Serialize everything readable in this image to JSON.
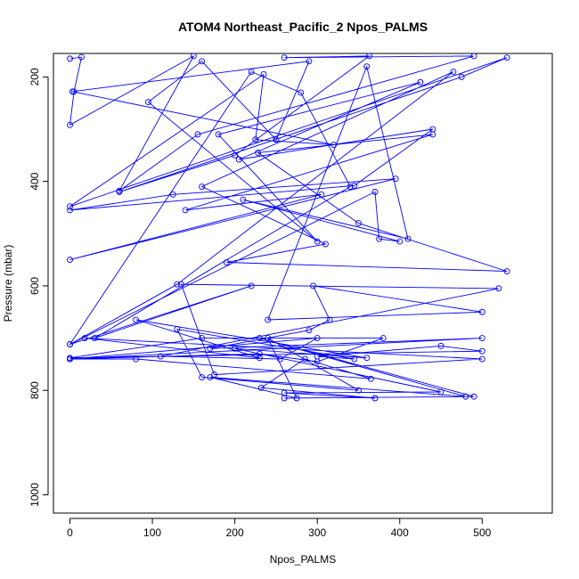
{
  "chart_data": {
    "type": "line",
    "title": "ATOM4 Northeast_Pacific_2 Npos_PALMS",
    "xlabel": "Npos_PALMS",
    "ylabel": "Pressure (mbar)",
    "xlim": [
      -20,
      585
    ],
    "ylim": [
      1035,
      155
    ],
    "y_inverted": true,
    "x_ticks": [
      0,
      100,
      200,
      300,
      400,
      500
    ],
    "y_ticks": [
      200,
      400,
      600,
      800,
      1000
    ],
    "grid": false,
    "legend": "none",
    "marker": "open-circle",
    "series_color": "#0000ff",
    "series": [
      {
        "x": [
          0,
          14,
          5,
          0,
          150,
          60,
          155,
          490,
          260,
          363,
          200,
          60,
          475,
          530,
          0,
          235,
          225,
          320,
          3,
          290,
          250,
          160,
          95,
          300,
          180,
          425,
          205,
          440,
          345,
          0,
          125,
          395,
          0,
          305,
          140,
          440,
          228,
          350,
          530,
          190,
          310,
          160,
          465,
          130,
          0,
          220,
          30,
          340,
          280,
          220,
          0,
          370,
          375,
          400,
          210,
          410,
          360,
          240,
          500,
          295,
          315,
          290,
          170,
          500,
          0,
          300,
          255,
          110,
          520,
          135,
          175,
          500,
          18,
          230,
          80,
          360,
          200,
          450,
          260,
          370,
          232,
          285,
          365,
          80,
          0,
          230,
          300,
          380,
          160,
          0,
          500,
          450,
          300,
          345,
          130,
          160,
          350,
          240,
          275,
          170,
          480,
          230,
          490,
          260
        ],
        "y": [
          165,
          162,
          228,
          292,
          160,
          418,
          310,
          160,
          163,
          160,
          350,
          420,
          200,
          163,
          448,
          195,
          320,
          330,
          228,
          170,
          320,
          170,
          248,
          515,
          310,
          210,
          358,
          300,
          408,
          455,
          425,
          395,
          550,
          425,
          455,
          310,
          345,
          480,
          572,
          555,
          520,
          410,
          190,
          597,
          712,
          600,
          700,
          410,
          230,
          190,
          712,
          420,
          510,
          515,
          435,
          510,
          180,
          665,
          650,
          600,
          665,
          685,
          720,
          700,
          740,
          700,
          740,
          735,
          605,
          597,
          770,
          740,
          700,
          738,
          665,
          738,
          720,
          803,
          805,
          815,
          795,
          740,
          778,
          740,
          740,
          730,
          745,
          700,
          700,
          738,
          725,
          715,
          735,
          740,
          683,
          775,
          800,
          700,
          815,
          775,
          812,
          700,
          812,
          815
        ]
      }
    ]
  }
}
